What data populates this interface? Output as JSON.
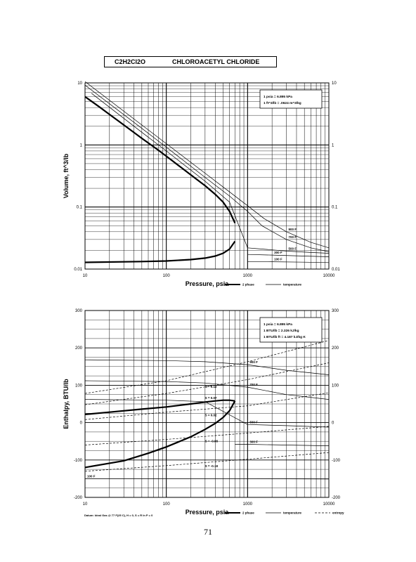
{
  "header": {
    "formula": "C2H2Cl2O",
    "name": "CHLOROACETYL CHLORIDE"
  },
  "page_number": "71",
  "footnote": "Datum: Ideal Gas @ 77 F(25 C), H = 0, S = R ln P = 0",
  "chart_data": [
    {
      "type": "line",
      "xlabel": "Pressure, psia",
      "ylabel": "Volume, ft^3/lb",
      "xscale": "log",
      "yscale": "log",
      "xlim": [
        10,
        10000
      ],
      "ylim": [
        0.01,
        10
      ],
      "xticks": [
        "10",
        "100",
        "1000",
        "10000"
      ],
      "yticks": [
        "0.01",
        "0.1",
        "1",
        "10"
      ],
      "note_lines": [
        "1 psia = 6.895 kPa",
        "1 ft^3/lb = .0624 m^3/kg"
      ],
      "legend": [
        {
          "label": "2 phase",
          "style": "thick"
        },
        {
          "label": "temperature",
          "style": "thin"
        }
      ],
      "two_phase": {
        "vapor": {
          "x": [
            10,
            15,
            20,
            30,
            50,
            80,
            120,
            200,
            300,
            400,
            500,
            600,
            700
          ],
          "y": [
            6.0,
            4.1,
            3.1,
            2.1,
            1.28,
            0.82,
            0.55,
            0.33,
            0.22,
            0.16,
            0.12,
            0.085,
            0.055
          ]
        },
        "liquid": {
          "x": [
            10,
            50,
            100,
            200,
            300,
            400,
            500,
            600,
            700
          ],
          "y": [
            0.0128,
            0.0132,
            0.0135,
            0.0142,
            0.015,
            0.0162,
            0.018,
            0.021,
            0.028
          ]
        }
      },
      "isotherms": [
        {
          "label": "900 F",
          "x": [
            10,
            50,
            100,
            300,
            600,
            1000,
            1600,
            3000,
            6000,
            10000
          ],
          "y": [
            10.5,
            2.1,
            1.05,
            0.35,
            0.175,
            0.105,
            0.065,
            0.04,
            0.027,
            0.022
          ]
        },
        {
          "label": "700 F",
          "x": [
            10,
            50,
            100,
            300,
            600,
            1000,
            1500,
            3000,
            6000,
            10000
          ],
          "y": [
            9.2,
            1.85,
            0.92,
            0.3,
            0.15,
            0.085,
            0.05,
            0.03,
            0.022,
            0.019
          ]
        },
        {
          "label": "500 F",
          "x": [
            12,
            50,
            100,
            300,
            600,
            1000,
            1500,
            3000,
            6000,
            10000
          ],
          "y": [
            6.8,
            1.6,
            0.8,
            0.26,
            0.12,
            0.022,
            0.021,
            0.0195,
            0.0185,
            0.018
          ]
        },
        {
          "label": "300 F",
          "x": [
            1000,
            2000,
            5000,
            10000
          ],
          "y": [
            0.0172,
            0.0168,
            0.0162,
            0.0158
          ]
        },
        {
          "label": "100 F",
          "x": [
            1000,
            2000,
            5000,
            10000
          ],
          "y": [
            0.0132,
            0.0131,
            0.0129,
            0.0127
          ]
        }
      ]
    },
    {
      "type": "line",
      "xlabel": "Pressure, psia",
      "ylabel": "Enthalpy, BTU/lb",
      "xscale": "log",
      "xlim": [
        10,
        10000
      ],
      "ylim": [
        -200,
        300
      ],
      "xticks": [
        "10",
        "100",
        "1000",
        "10000"
      ],
      "yticks": [
        "-200",
        "-100",
        "0",
        "100",
        "200",
        "300"
      ],
      "note_lines": [
        "1 psia = 6.895 kPa",
        "1 BTU/lb = 2.326 kJ/kg",
        "1 BTU/lb ft = 4.187 kJ/kg K"
      ],
      "legend": [
        {
          "label": "2 phase",
          "style": "thick"
        },
        {
          "label": "temperature",
          "style": "thin"
        },
        {
          "label": "entropy",
          "style": "dashed"
        }
      ],
      "two_phase": {
        "vapor": {
          "x": [
            10,
            20,
            50,
            100,
            200,
            300,
            400,
            500,
            600,
            700
          ],
          "y": [
            22,
            28,
            36,
            42,
            50,
            55,
            58,
            60,
            60,
            58
          ]
        },
        "liquid": {
          "x": [
            10,
            30,
            60,
            100,
            200,
            300,
            400,
            500,
            600,
            700
          ],
          "y": [
            -120,
            -102,
            -82,
            -65,
            -38,
            -18,
            -2,
            14,
            32,
            58
          ]
        }
      },
      "isotherms": [
        {
          "label": "900 F",
          "x": [
            10,
            100,
            300,
            1000,
            3000,
            10000
          ],
          "y": [
            168,
            166,
            163,
            155,
            140,
            128
          ]
        },
        {
          "label": "700 F",
          "x": [
            10,
            100,
            300,
            1000,
            3000,
            10000
          ],
          "y": [
            112,
            110,
            106,
            95,
            75,
            62
          ]
        },
        {
          "label": "500 F",
          "x": [
            10,
            100,
            300,
            1000,
            3000,
            10000
          ],
          "y": [
            62,
            60,
            56,
            -5,
            -8,
            -12
          ]
        },
        {
          "label": "300 F",
          "x": [
            700,
            1000,
            3000,
            10000
          ],
          "y": [
            -58,
            -58,
            -60,
            -62
          ]
        },
        {
          "label": "100 F",
          "x": [
            10,
            1000,
            10000
          ],
          "y": [
            -150,
            -150,
            -151
          ]
        }
      ],
      "entropy_lines": [
        {
          "label": "S = 0.12",
          "x": [
            10,
            100,
            1000,
            10000
          ],
          "y": [
            78,
            112,
            163,
            220
          ]
        },
        {
          "label": "S = 0.07",
          "x": [
            10,
            100,
            1000,
            10000
          ],
          "y": [
            48,
            78,
            115,
            160
          ]
        },
        {
          "label": "S = 0.02",
          "x": [
            10,
            100,
            1000,
            10000
          ],
          "y": [
            8,
            28,
            45,
            80
          ]
        },
        {
          "label": "S = -0.08",
          "x": [
            10,
            100,
            1000,
            10000
          ],
          "y": [
            -60,
            -45,
            -28,
            -10
          ]
        },
        {
          "label": "S = -0.18",
          "x": [
            10,
            100,
            1000,
            10000
          ],
          "y": [
            -130,
            -115,
            -98,
            -80
          ]
        }
      ]
    }
  ]
}
